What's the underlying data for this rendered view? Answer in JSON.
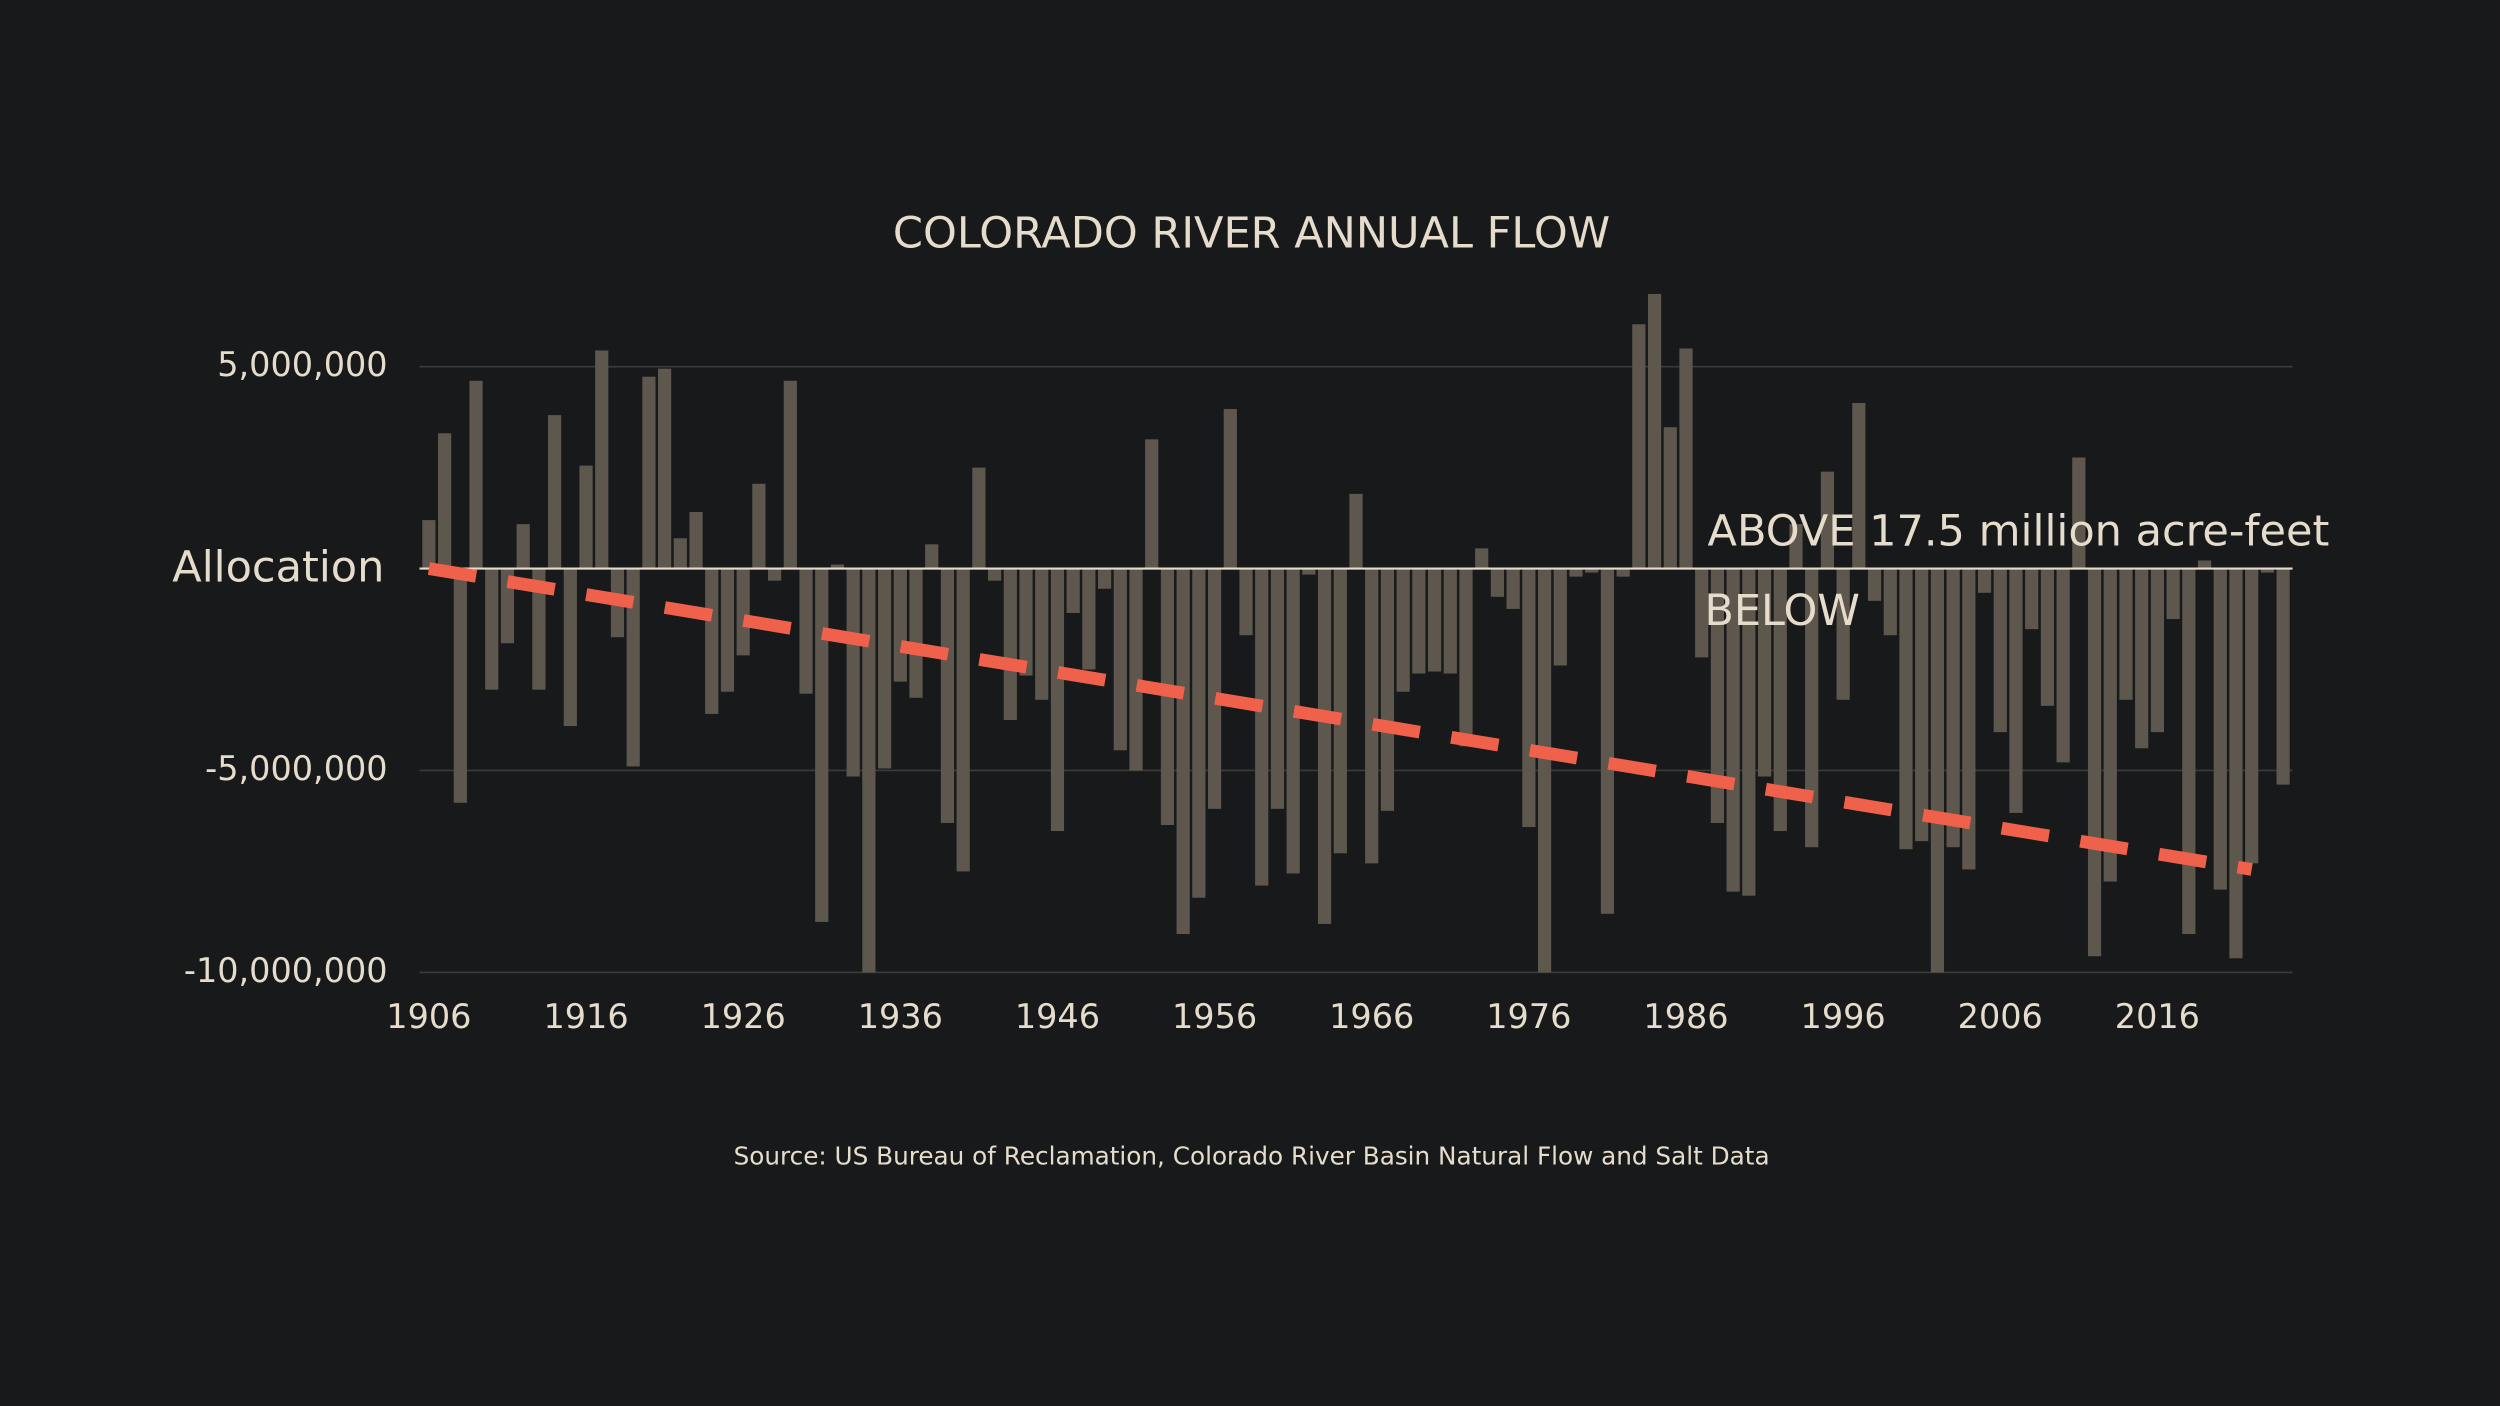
{
  "chart_data": {
    "type": "bar",
    "title": "COLORADO RIVER ANNUAL FLOW",
    "source": "Source: US Bureau of Reclamation, Colorado River Basin Natural Flow and Salt Data",
    "annotations": {
      "above": "ABOVE 17.5 million acre-feet",
      "below": "BELOW"
    },
    "x": [
      1906,
      1907,
      1908,
      1909,
      1910,
      1911,
      1912,
      1913,
      1914,
      1915,
      1916,
      1917,
      1918,
      1919,
      1920,
      1921,
      1922,
      1923,
      1924,
      1925,
      1926,
      1927,
      1928,
      1929,
      1930,
      1931,
      1932,
      1933,
      1934,
      1935,
      1936,
      1937,
      1938,
      1939,
      1940,
      1941,
      1942,
      1943,
      1944,
      1945,
      1946,
      1947,
      1948,
      1949,
      1950,
      1951,
      1952,
      1953,
      1954,
      1955,
      1956,
      1957,
      1958,
      1959,
      1960,
      1961,
      1962,
      1963,
      1964,
      1965,
      1966,
      1967,
      1968,
      1969,
      1970,
      1971,
      1972,
      1973,
      1974,
      1975,
      1976,
      1977,
      1978,
      1979,
      1980,
      1981,
      1982,
      1983,
      1984,
      1985,
      1986,
      1987,
      1988,
      1989,
      1990,
      1991,
      1992,
      1993,
      1994,
      1995,
      1996,
      1997,
      1998,
      1999,
      2000,
      2001,
      2002,
      2003,
      2004,
      2005,
      2006,
      2007,
      2008,
      2009,
      2010,
      2011,
      2012,
      2013,
      2014,
      2015,
      2016,
      2017,
      2018,
      2019,
      2020,
      2021,
      2022,
      2023,
      2024
    ],
    "values": [
      1200000,
      3350000,
      -5800000,
      4650000,
      -3000000,
      -1850000,
      1100000,
      -3000000,
      3800000,
      -3900000,
      2550000,
      5400000,
      -1700000,
      -4900000,
      4750000,
      4950000,
      750000,
      1400000,
      -3600000,
      -3050000,
      -2150000,
      2100000,
      -300000,
      4650000,
      -3100000,
      -8750000,
      100000,
      -5150000,
      -10000000,
      -4950000,
      -2800000,
      -3200000,
      600000,
      -6300000,
      -7500000,
      2500000,
      -300000,
      -3750000,
      -2650000,
      -3250000,
      -6500000,
      -1100000,
      -2500000,
      -500000,
      -4500000,
      -5000000,
      3200000,
      -6350000,
      -9050000,
      -8150000,
      -5950000,
      3950000,
      -1650000,
      -7850000,
      -5950000,
      -7550000,
      -150000,
      -8800000,
      -7050000,
      1850000,
      -7300000,
      -6000000,
      -3050000,
      -2600000,
      -2550000,
      -2600000,
      -4400000,
      500000,
      -700000,
      -1000000,
      -6400000,
      -10000000,
      -2400000,
      -200000,
      -100000,
      -8550000,
      -200000,
      6050000,
      6800000,
      3500000,
      5450000,
      -2200000,
      -6300000,
      -8000000,
      -8100000,
      -5150000,
      -6500000,
      1100000,
      -6900000,
      2400000,
      -3250000,
      4100000,
      -800000,
      -1650000,
      -6950000,
      -6750000,
      -10000000,
      -6900000,
      -7450000,
      -600000,
      -4050000,
      -6050000,
      -1500000,
      -3400000,
      -4800000,
      2750000,
      -9600000,
      -7750000,
      -3250000,
      -4450000,
      -4050000,
      -1250000,
      -9050000,
      200000,
      -7950000,
      -9650000,
      -7300000,
      -100000,
      -5350000
    ],
    "color": "#5d574e",
    "trend": {
      "x": [
        1906,
        2022
      ],
      "values": [
        0,
        -7450000
      ],
      "color": "#f0614b"
    },
    "xlim": [
      1905.4,
      2024.6
    ],
    "xticks": [
      1906,
      1916,
      1926,
      1936,
      1946,
      1956,
      1966,
      1976,
      1986,
      1996,
      2006,
      2016
    ],
    "ylim": [
      -10000000,
      5000000
    ],
    "yticks": [
      {
        "value": 5000000,
        "label": "5,000,000"
      },
      {
        "value": 0,
        "label": "Allocation"
      },
      {
        "value": -5000000,
        "label": "-5,000,000"
      },
      {
        "value": -10000000,
        "label": "-10,000,000"
      }
    ],
    "grid": true
  }
}
